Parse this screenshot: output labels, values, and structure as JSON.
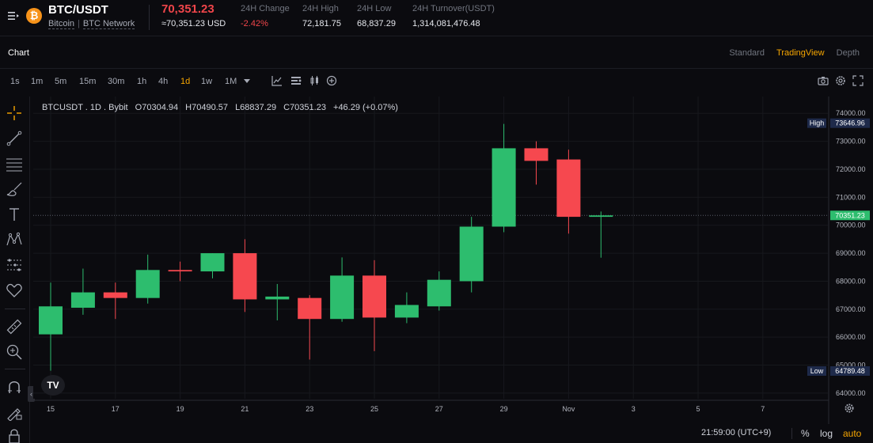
{
  "header": {
    "coin_icon": "bitcoin-icon",
    "coin_glyph": "₿",
    "pair": "BTC/USDT",
    "name": "Bitcoin",
    "network": "BTC Network",
    "price": "70,351.23",
    "price_usd": "≈70,351.23 USD",
    "stats": [
      {
        "label": "24H Change",
        "value": "-2.42%"
      },
      {
        "label": "24H High",
        "value": "72,181.75"
      },
      {
        "label": "24H Low",
        "value": "68,837.29"
      },
      {
        "label": "24H Turnover(USDT)",
        "value": "1,314,081,476.48"
      }
    ]
  },
  "tabs": {
    "chart_label": "Chart",
    "views": [
      "Standard",
      "TradingView",
      "Depth"
    ],
    "active_view": "TradingView"
  },
  "toolbar": {
    "timeframes": [
      "1s",
      "1m",
      "5m",
      "15m",
      "30m",
      "1h",
      "4h",
      "1d",
      "1w",
      "1M"
    ],
    "active_timeframe": "1d"
  },
  "legend": {
    "symbol": "BTCUSDT . 1D . Bybit",
    "open": "O70304.94",
    "high": "H70490.57",
    "low": "L68837.29",
    "close": "C70351.23",
    "change": "+46.29 (+0.07%)"
  },
  "colors": {
    "up": "#2dbd6e",
    "down": "#f6484f",
    "accent": "#f7a600",
    "price_neg": "#ef454a"
  },
  "chart_data": {
    "type": "candlestick",
    "title": "",
    "x_ticks": [
      "15",
      "17",
      "19",
      "21",
      "23",
      "25",
      "27",
      "29",
      "Nov",
      "3",
      "5",
      "7"
    ],
    "y_ticks": [
      64000,
      65000,
      66000,
      67000,
      68000,
      69000,
      70000,
      71000,
      72000,
      73000,
      74000
    ],
    "y_tick_labels": [
      "64000.00",
      "65000.00",
      "66000.00",
      "67000.00",
      "68000.00",
      "69000.00",
      "70000.00",
      "71000.00",
      "72000.00",
      "73000.00",
      "74000.00"
    ],
    "ylim": [
      63800,
      74600
    ],
    "candles": [
      {
        "day": "Oct 15",
        "o": 66100,
        "h": 67950,
        "l": 64800,
        "c": 67100
      },
      {
        "day": "Oct 16",
        "o": 67050,
        "h": 68450,
        "l": 66800,
        "c": 67600
      },
      {
        "day": "Oct 17",
        "o": 67600,
        "h": 67950,
        "l": 66650,
        "c": 67400
      },
      {
        "day": "Oct 18",
        "o": 67400,
        "h": 68950,
        "l": 67200,
        "c": 68400
      },
      {
        "day": "Oct 19",
        "o": 68400,
        "h": 68700,
        "l": 68000,
        "c": 68350
      },
      {
        "day": "Oct 20",
        "o": 68350,
        "h": 69000,
        "l": 68100,
        "c": 69000
      },
      {
        "day": "Oct 21",
        "o": 69000,
        "h": 69500,
        "l": 66900,
        "c": 67350
      },
      {
        "day": "Oct 22",
        "o": 67350,
        "h": 67900,
        "l": 66600,
        "c": 67450
      },
      {
        "day": "Oct 23",
        "o": 67400,
        "h": 67500,
        "l": 65200,
        "c": 66650
      },
      {
        "day": "Oct 24",
        "o": 66650,
        "h": 68850,
        "l": 66550,
        "c": 68200
      },
      {
        "day": "Oct 25",
        "o": 68200,
        "h": 68750,
        "l": 65500,
        "c": 66700
      },
      {
        "day": "Oct 26",
        "o": 66700,
        "h": 67600,
        "l": 66500,
        "c": 67150
      },
      {
        "day": "Oct 27",
        "o": 67100,
        "h": 68350,
        "l": 66950,
        "c": 68050
      },
      {
        "day": "Oct 28",
        "o": 68000,
        "h": 70300,
        "l": 67600,
        "c": 69950
      },
      {
        "day": "Oct 29",
        "o": 69950,
        "h": 73620,
        "l": 69750,
        "c": 72750
      },
      {
        "day": "Oct 30",
        "o": 72750,
        "h": 73000,
        "l": 71450,
        "c": 72300
      },
      {
        "day": "Oct 31",
        "o": 72350,
        "h": 72700,
        "l": 69700,
        "c": 70300
      },
      {
        "day": "Nov 1",
        "o": 70300,
        "h": 70490,
        "l": 68840,
        "c": 70351
      }
    ],
    "high_marker": {
      "label": "High",
      "value": "73646.96"
    },
    "low_marker": {
      "label": "Low",
      "value": "64789.48"
    },
    "last_price": {
      "value": "70351.23"
    }
  },
  "bottom": {
    "time": "21:59:00 (UTC+9)",
    "buttons": [
      "%",
      "log",
      "auto"
    ],
    "active": "auto"
  }
}
